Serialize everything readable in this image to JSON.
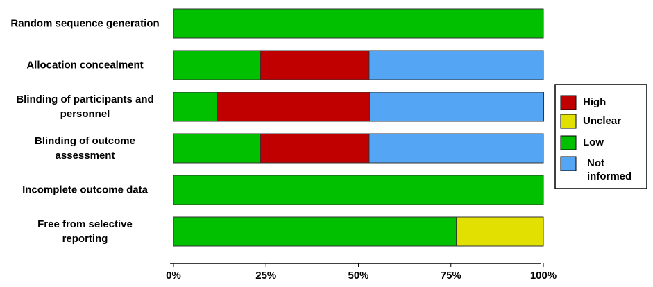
{
  "chart_data": {
    "type": "stacked-bar-horizontal",
    "categories": [
      "Random sequence generation",
      "Allocation concealment",
      "Blinding of participants and\npersonnel",
      "Blinding of outcome\nassessment",
      "Incomplete outcome data",
      "Free from selective\nreporting"
    ],
    "series": [
      {
        "name": "High",
        "color": "#c00000",
        "values": [
          0,
          29.4,
          41.2,
          29.4,
          0,
          0
        ]
      },
      {
        "name": "Unclear",
        "color": "#e2e000",
        "values": [
          0,
          0,
          0,
          0,
          0,
          23.5
        ]
      },
      {
        "name": "Low",
        "color": "#00c000",
        "values": [
          100,
          23.5,
          11.8,
          23.5,
          100,
          76.5
        ]
      },
      {
        "name": "Not informed",
        "color": "#55a5f5",
        "values": [
          0,
          47.1,
          47.1,
          47.1,
          0,
          0
        ]
      }
    ],
    "stack_order": [
      "Low",
      "High",
      "Unclear",
      "Not informed"
    ],
    "xlim": [
      0,
      100
    ],
    "xticks": [
      {
        "value": 0,
        "label": "0%"
      },
      {
        "value": 25,
        "label": "25%"
      },
      {
        "value": 50,
        "label": "50%"
      },
      {
        "value": 75,
        "label": "75%"
      },
      {
        "value": 100,
        "label": "100%"
      }
    ],
    "legend": "right"
  }
}
